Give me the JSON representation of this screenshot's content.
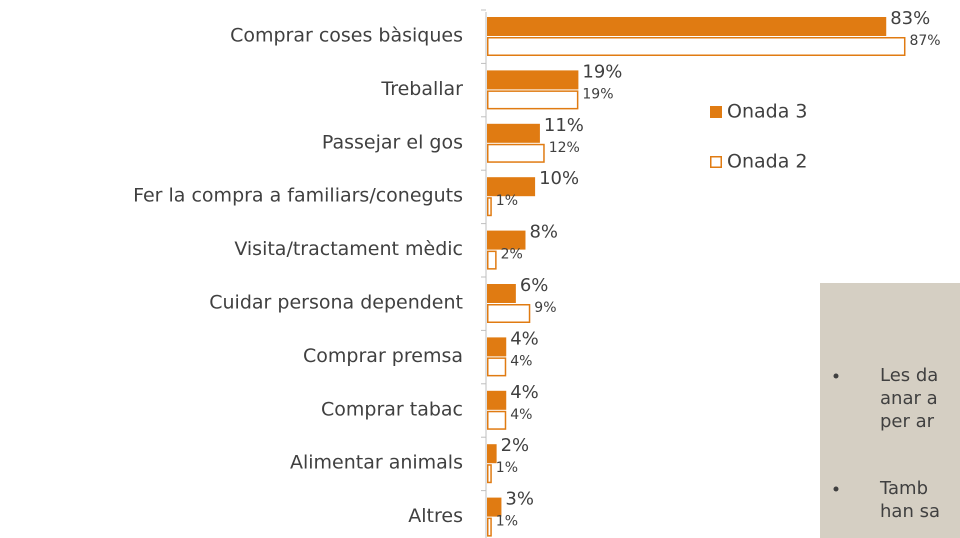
{
  "chart_data": {
    "type": "bar",
    "orientation": "horizontal",
    "categories": [
      "Comprar coses bàsiques",
      "Treballar",
      "Passejar el gos",
      "Fer la compra a familiars/coneguts",
      "Visita/tractament mèdic",
      "Cuidar persona dependent",
      "Comprar premsa",
      "Comprar tabac",
      "Alimentar animals",
      "Altres"
    ],
    "series": [
      {
        "name": "Onada 3",
        "color": "#e07b12",
        "fill": "solid",
        "values": [
          83,
          19,
          11,
          10,
          8,
          6,
          4,
          4,
          2,
          3
        ],
        "value_labels": [
          "83%",
          "19%",
          "11%",
          "10%",
          "8%",
          "6%",
          "4%",
          "4%",
          "2%",
          "3%"
        ]
      },
      {
        "name": "Onada 2",
        "color": "#e07b12",
        "fill": "outline",
        "values": [
          87,
          19,
          12,
          1,
          2,
          9,
          4,
          4,
          1,
          1
        ],
        "value_labels": [
          "87%",
          "19%",
          "12%",
          "1%",
          "2%",
          "9%",
          "4%",
          "4%",
          "1%",
          "1%"
        ]
      }
    ],
    "legend": "right",
    "annotations": [
      [
        "Les da",
        "anar a",
        "per ar"
      ],
      [
        "Tamb",
        "han sa"
      ]
    ]
  }
}
